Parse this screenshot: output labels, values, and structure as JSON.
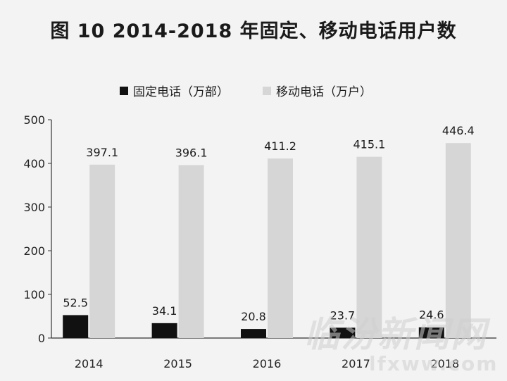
{
  "chart_data": {
    "type": "bar",
    "title": "图 10   2014-2018 年固定、移动电话用户数",
    "categories": [
      "2014",
      "2015",
      "2016",
      "2017",
      "2018"
    ],
    "series": [
      {
        "name": "固定电话（万部）",
        "values": [
          52.5,
          34.1,
          20.8,
          23.7,
          24.6
        ],
        "color": "#111111"
      },
      {
        "name": "移动电话（万户）",
        "values": [
          397.1,
          396.1,
          411.2,
          415.1,
          446.4
        ],
        "color": "#d6d6d6"
      }
    ],
    "ylim": [
      0,
      500
    ],
    "yticks": [
      "0",
      "100",
      "200",
      "300",
      "400",
      "500"
    ],
    "legend_position": "top-center",
    "grid": false
  },
  "watermark": {
    "brand": "临汾新闻网",
    "domain": "lfxww.com"
  }
}
